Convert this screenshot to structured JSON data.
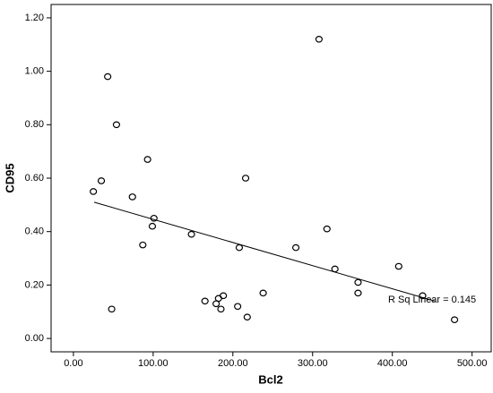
{
  "chart_data": {
    "type": "scatter",
    "x_label": "Bcl2",
    "y_label": "CD95",
    "xlim": [
      -28,
      524
    ],
    "ylim": [
      -0.05,
      1.25
    ],
    "xticks": [
      {
        "value": 0,
        "label": "0.00"
      },
      {
        "value": 100,
        "label": "100.00"
      },
      {
        "value": 200,
        "label": "200.00"
      },
      {
        "value": 300,
        "label": "300.00"
      },
      {
        "value": 400,
        "label": "400.00"
      },
      {
        "value": 500,
        "label": "500.00"
      }
    ],
    "yticks": [
      {
        "value": 0,
        "label": "0.00"
      },
      {
        "value": 0.2,
        "label": "0.20"
      },
      {
        "value": 0.4,
        "label": "0.40"
      },
      {
        "value": 0.6,
        "label": "0.60"
      },
      {
        "value": 0.8,
        "label": "0.80"
      },
      {
        "value": 1.0,
        "label": "1.00"
      },
      {
        "value": 1.2,
        "label": "1.20"
      }
    ],
    "x": [
      25,
      35,
      43,
      54,
      48,
      74,
      93,
      87,
      99,
      101,
      148,
      165,
      179,
      182,
      188,
      185,
      206,
      208,
      216,
      218,
      238,
      279,
      308,
      318,
      328,
      357,
      357,
      408,
      438,
      478
    ],
    "y": [
      0.55,
      0.59,
      0.98,
      0.8,
      0.11,
      0.53,
      0.67,
      0.35,
      0.42,
      0.45,
      0.39,
      0.14,
      0.13,
      0.15,
      0.16,
      0.11,
      0.12,
      0.34,
      0.6,
      0.08,
      0.17,
      0.34,
      1.12,
      0.41,
      0.26,
      0.21,
      0.17,
      0.27,
      0.16,
      0.07
    ],
    "color": "#000000",
    "fit": {
      "x": [
        26,
        453
      ],
      "y": [
        0.51,
        0.14
      ]
    },
    "annotation": "R Sq Linear = 0.145"
  }
}
